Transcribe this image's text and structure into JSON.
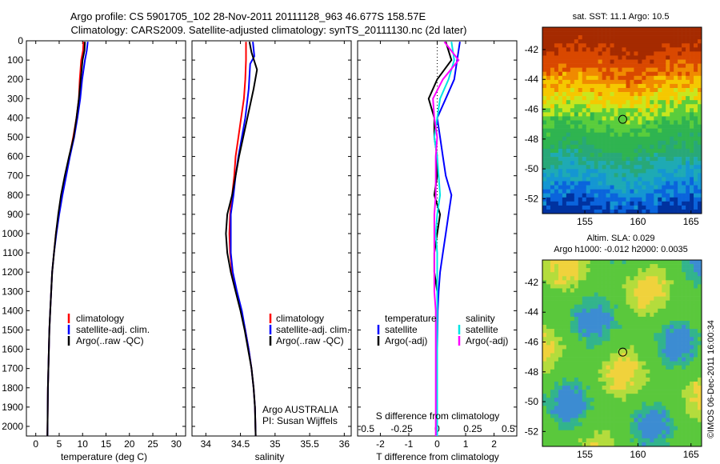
{
  "header": {
    "title_line1": "Argo profile: CS 5901705_102 28-Nov-2011 20111128_963 46.677S 158.57E",
    "title_line2": "Climatology: CARS2009. Satellite-adjusted climatology: synTS_20111130.nc (2d later)"
  },
  "colors": {
    "climatology": "#ff0000",
    "satellite": "#0000ff",
    "argo": "#000000",
    "sat_salinity": "#00e5e5",
    "argo_salinity": "#ff00ff"
  },
  "chart_data": [
    {
      "id": "temperature",
      "type": "line",
      "xlabel": "temperature (deg C)",
      "xlim": [
        -2,
        32
      ],
      "ylim": [
        0,
        2050
      ],
      "y_reversed": true,
      "xticks": [
        0,
        5,
        10,
        15,
        20,
        25,
        30
      ],
      "yticks": [
        0,
        100,
        200,
        300,
        400,
        500,
        600,
        700,
        800,
        900,
        1000,
        1100,
        1200,
        1300,
        1400,
        1500,
        1600,
        1700,
        1800,
        1900,
        2000
      ],
      "legend": [
        "climatology",
        "satellite-adj. clim.",
        "Argo(..raw -QC)"
      ],
      "series": [
        {
          "name": "climatology",
          "color": "#ff0000",
          "x": [
            10.2,
            10.1,
            9.7,
            9.4,
            9.2,
            8.7,
            8.0,
            7.2,
            6.4,
            5.6,
            4.9,
            4.3,
            3.9,
            3.5,
            3.3,
            3.1,
            2.9,
            2.8,
            2.7,
            2.6,
            2.5
          ],
          "y": [
            5,
            50,
            100,
            200,
            300,
            400,
            500,
            600,
            700,
            800,
            900,
            1000,
            1100,
            1200,
            1300,
            1400,
            1500,
            1600,
            1700,
            1800,
            2050
          ]
        },
        {
          "name": "satellite-adj. clim.",
          "color": "#0000ff",
          "x": [
            11.1,
            10.9,
            10.5,
            9.9,
            9.5,
            8.9,
            8.2,
            7.3,
            6.5,
            5.7,
            5.0,
            4.4,
            3.9,
            3.5,
            3.3,
            3.1,
            2.9,
            2.8,
            2.7,
            2.6,
            2.5
          ],
          "y": [
            5,
            50,
            100,
            200,
            300,
            400,
            500,
            600,
            700,
            800,
            900,
            1000,
            1100,
            1200,
            1300,
            1400,
            1500,
            1600,
            1700,
            1800,
            2050
          ]
        },
        {
          "name": "Argo(..raw -QC)",
          "color": "#000000",
          "x": [
            10.5,
            10.4,
            10.0,
            9.6,
            9.2,
            8.7,
            8.1,
            7.1,
            6.2,
            5.4,
            4.8,
            4.3,
            3.9,
            3.5,
            3.3,
            3.1,
            2.9,
            2.8,
            2.7,
            2.6,
            2.5
          ],
          "y": [
            5,
            50,
            100,
            200,
            300,
            400,
            500,
            600,
            700,
            800,
            900,
            1000,
            1100,
            1200,
            1300,
            1400,
            1500,
            1600,
            1700,
            1800,
            2050
          ]
        }
      ]
    },
    {
      "id": "salinity",
      "type": "line",
      "xlabel": "salinity",
      "xlim": [
        33.8,
        36.1
      ],
      "ylim": [
        0,
        2050
      ],
      "y_reversed": true,
      "xticks": [
        34,
        34.5,
        35,
        35.5,
        36
      ],
      "legend": [
        "climatology",
        "satellite-adj. clim.",
        "Argo(..raw -QC)"
      ],
      "annotation": [
        "Argo AUSTRALIA",
        "PI: Susan Wijffels"
      ],
      "series": [
        {
          "name": "climatology",
          "color": "#ff0000",
          "x": [
            34.58,
            34.58,
            34.57,
            34.55,
            34.51,
            34.47,
            34.43,
            34.41,
            34.38,
            34.35,
            34.34,
            34.35,
            34.38,
            34.44,
            34.51,
            34.57,
            34.62,
            34.66,
            34.69,
            34.71,
            34.72
          ],
          "y": [
            5,
            100,
            200,
            300,
            400,
            500,
            600,
            700,
            800,
            900,
            1000,
            1100,
            1200,
            1300,
            1400,
            1500,
            1600,
            1700,
            1800,
            1900,
            2050
          ]
        },
        {
          "name": "satellite-adj. clim.",
          "color": "#0000ff",
          "x": [
            34.68,
            34.7,
            34.64,
            34.62,
            34.57,
            34.52,
            34.47,
            34.43,
            34.4,
            34.36,
            34.36,
            34.36,
            34.39,
            34.45,
            34.52,
            34.57,
            34.62,
            34.66,
            34.69,
            34.71,
            34.72
          ],
          "y": [
            5,
            80,
            120,
            250,
            400,
            500,
            600,
            700,
            800,
            900,
            1000,
            1100,
            1200,
            1300,
            1400,
            1500,
            1600,
            1700,
            1800,
            1900,
            2050
          ]
        },
        {
          "name": "Argo(..raw -QC)",
          "color": "#000000",
          "x": [
            34.63,
            34.66,
            34.74,
            34.69,
            34.6,
            34.54,
            34.48,
            34.43,
            34.38,
            34.31,
            34.29,
            34.31,
            34.36,
            34.43,
            34.5,
            34.56,
            34.61,
            34.66,
            34.69,
            34.71,
            34.72
          ],
          "y": [
            5,
            60,
            150,
            250,
            400,
            500,
            600,
            700,
            800,
            900,
            1000,
            1100,
            1200,
            1300,
            1400,
            1500,
            1600,
            1700,
            1800,
            1900,
            2050
          ]
        }
      ]
    },
    {
      "id": "difference",
      "type": "line",
      "xlabel": "T difference from climatology",
      "top_label": "S difference from climatology",
      "xlim": [
        -2.8,
        2.8
      ],
      "ylim": [
        0,
        2050
      ],
      "y_reversed": true,
      "xticks": [
        -2,
        -1,
        0,
        1,
        2
      ],
      "xticklabels_t": [
        "-2",
        "-1",
        "0",
        "1",
        "2"
      ],
      "xticks_s": [
        -0.5,
        -0.25,
        0,
        0.25,
        0.5
      ],
      "xticklabels_s": [
        "-0.5",
        "-0.25",
        "0",
        "0.25",
        "0.5"
      ],
      "s_scale": 0.2,
      "legend_t": [
        "temperature",
        "satellite",
        "Argo(-adj)"
      ],
      "legend_s": [
        "salinity",
        "satellite",
        "Argo(-adj)"
      ],
      "series": [
        {
          "name": "satellite",
          "kind": "temperature",
          "color": "#0000ff",
          "x": [
            0.8,
            0.7,
            0.6,
            0.3,
            0.0,
            0.1,
            0.2,
            0.3,
            0.5,
            0.4,
            0.3,
            0.2,
            0.1,
            0.05,
            0.02,
            0.01,
            0.0,
            0.0,
            0.0,
            0.0,
            0.0
          ],
          "y": [
            5,
            100,
            200,
            300,
            400,
            500,
            600,
            700,
            800,
            900,
            1000,
            1100,
            1200,
            1300,
            1400,
            1500,
            1600,
            1700,
            1800,
            1900,
            2050
          ]
        },
        {
          "name": "Argo(-adj)",
          "kind": "temperature",
          "color": "#000000",
          "x": [
            0.3,
            0.5,
            0.0,
            -0.3,
            -0.1,
            -0.1,
            0.0,
            0.0,
            -0.1,
            0.1,
            0.0,
            -0.1,
            -0.1,
            0.0,
            0.0,
            0.0,
            0.0,
            0.0,
            0.0,
            0.0,
            0.0
          ],
          "y": [
            5,
            100,
            200,
            300,
            400,
            500,
            600,
            700,
            800,
            900,
            1000,
            1100,
            1200,
            1300,
            1400,
            1500,
            1600,
            1700,
            1800,
            1900,
            2050
          ]
        },
        {
          "name": "satellite",
          "kind": "salinity",
          "color": "#00e5e5",
          "x": [
            0.1,
            0.12,
            0.08,
            0.02,
            0.0,
            -0.02,
            0.0,
            0.01,
            0.02,
            0.0,
            -0.01,
            0.0,
            0.0,
            0.0,
            0.0,
            0.0,
            0.0,
            0.0,
            0.0,
            0.0,
            0.0
          ],
          "y": [
            5,
            100,
            200,
            300,
            400,
            500,
            600,
            700,
            800,
            900,
            1000,
            1100,
            1200,
            1300,
            1400,
            1500,
            1600,
            1700,
            1800,
            1900,
            2050
          ]
        },
        {
          "name": "Argo(-adj)",
          "kind": "salinity",
          "color": "#ff00ff",
          "x": [
            0.05,
            0.15,
            0.04,
            -0.03,
            -0.02,
            0.0,
            -0.01,
            -0.01,
            -0.01,
            -0.02,
            -0.02,
            -0.02,
            -0.02,
            -0.02,
            -0.01,
            -0.01,
            -0.01,
            -0.01,
            -0.01,
            -0.01,
            -0.01
          ],
          "y": [
            5,
            100,
            200,
            300,
            400,
            500,
            600,
            700,
            800,
            900,
            1000,
            1100,
            1200,
            1300,
            1400,
            1500,
            1600,
            1700,
            1800,
            1900,
            2050
          ]
        }
      ]
    },
    {
      "id": "sst_map",
      "type": "heatmap",
      "title": "sat. SST: 11.1  Argo: 10.5",
      "xlim": [
        151,
        166
      ],
      "ylim": [
        -53,
        -40.5
      ],
      "xticks": [
        155,
        160,
        165
      ],
      "yticks": [
        -42,
        -44,
        -46,
        -48,
        -50,
        -52
      ],
      "argo_position": [
        158.57,
        -46.677
      ],
      "palette": "jet-high-in-north"
    },
    {
      "id": "sla_map",
      "type": "heatmap",
      "title_line1": "Altim. SLA: 0.029",
      "title_line2": "Argo h1000: -0.012  h2000: 0.0035",
      "xlim": [
        151,
        166
      ],
      "ylim": [
        -53,
        -40.5
      ],
      "xticks": [
        155,
        160,
        165
      ],
      "yticks": [
        -42,
        -44,
        -46,
        -48,
        -50,
        -52
      ],
      "argo_position": [
        158.57,
        -46.677
      ],
      "palette": "green-yellow-blue-anomaly"
    }
  ],
  "footer": {
    "stamp": "©IMOS 06-Dec-2011 16:00:34"
  }
}
